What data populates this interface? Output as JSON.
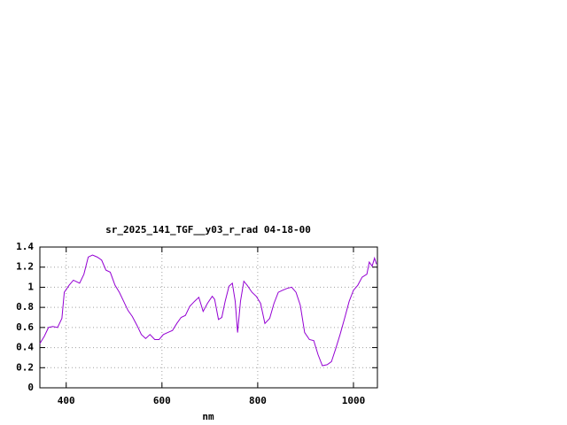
{
  "chart_data": {
    "type": "line",
    "title": "sr_2025_141_TGF__y03_r_rad 04-18-00",
    "x_label": "nm",
    "x": [
      345,
      354,
      363,
      372,
      382,
      391,
      396,
      406,
      415,
      428,
      437,
      446,
      455,
      465,
      474,
      483,
      492,
      502,
      511,
      520,
      529,
      538,
      548,
      557,
      566,
      575,
      585,
      594,
      603,
      612,
      622,
      631,
      640,
      649,
      658,
      668,
      677,
      686,
      695,
      705,
      710,
      718,
      725,
      732,
      740,
      747,
      753,
      758,
      764,
      771,
      778,
      788,
      797,
      806,
      815,
      825,
      834,
      843,
      852,
      862,
      871,
      880,
      889,
      898,
      908,
      917,
      926,
      935,
      945,
      954,
      963,
      972,
      982,
      991,
      1000,
      1009,
      1018,
      1028,
      1033,
      1039,
      1044,
      1048
    ],
    "series": [
      {
        "color": "#9400d3",
        "values": [
          0.44,
          0.51,
          0.6,
          0.61,
          0.6,
          0.69,
          0.95,
          1.02,
          1.07,
          1.04,
          1.13,
          1.3,
          1.32,
          1.3,
          1.27,
          1.17,
          1.15,
          1.02,
          0.95,
          0.86,
          0.77,
          0.71,
          0.62,
          0.53,
          0.49,
          0.53,
          0.48,
          0.48,
          0.53,
          0.55,
          0.57,
          0.64,
          0.7,
          0.72,
          0.81,
          0.86,
          0.9,
          0.76,
          0.84,
          0.91,
          0.88,
          0.68,
          0.7,
          0.86,
          1.01,
          1.04,
          0.86,
          0.55,
          0.86,
          1.06,
          1.02,
          0.95,
          0.91,
          0.84,
          0.64,
          0.69,
          0.84,
          0.95,
          0.97,
          0.99,
          1.0,
          0.95,
          0.82,
          0.55,
          0.48,
          0.47,
          0.33,
          0.22,
          0.23,
          0.26,
          0.39,
          0.53,
          0.7,
          0.86,
          0.97,
          1.02,
          1.1,
          1.13,
          1.25,
          1.21,
          1.29,
          1.23
        ]
      }
    ],
    "xlim": [
      345,
      1050
    ],
    "xticks": [
      400,
      600,
      800,
      1000
    ],
    "ylim": [
      0,
      1.4
    ],
    "yticks": [
      0,
      0.2,
      0.4,
      0.6,
      0.8,
      1,
      1.2,
      1.4
    ],
    "grid": true
  }
}
